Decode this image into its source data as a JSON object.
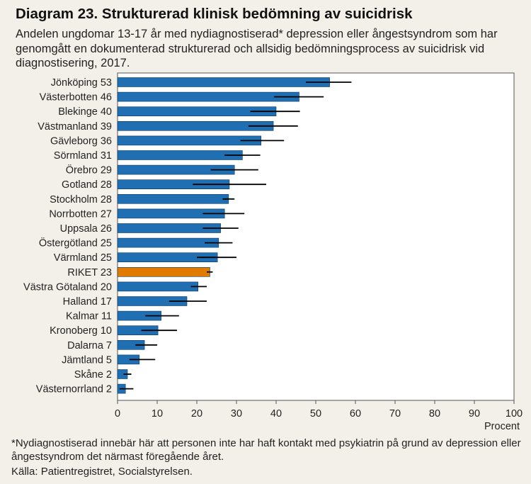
{
  "title": "Diagram 23. Strukturerad klinisk bedömning av suicidrisk",
  "subtitle": "Andelen ungdomar 13-17 år med nydiagnostiserad* depression eller ångestsyndrom som har genomgått  en dokumenterad strukturerad och allsidig bedömningsprocess av suicidrisk vid diagnostisering, 2017.",
  "footnote": "*Nydiagnostiserad innebär här att personen inte har haft kontakt med psykiatrin på grund av depression eller ångestsyndrom det närmast föregående året.",
  "source": "Källa: Patientregistret, Socialstyrelsen.",
  "colors": {
    "bar": "#1f6fb2",
    "highlight": "#e07b00",
    "errorbar": "#000000",
    "background": "#f2f0e8",
    "plot_bg": "#ffffff"
  },
  "chart_data": {
    "type": "bar",
    "orientation": "horizontal",
    "title": "Strukturerad klinisk bedömning av suicidrisk",
    "xlabel": "Procent",
    "ylabel": "",
    "xlim": [
      0,
      100
    ],
    "xticks": [
      0,
      10,
      20,
      30,
      40,
      50,
      60,
      70,
      80,
      90,
      100
    ],
    "grid": false,
    "highlight_category": "RIKET",
    "categories": [
      {
        "label": "Jönköping 53",
        "name": "Jönköping",
        "value": 53.5,
        "ci": [
          47.5,
          59.0
        ]
      },
      {
        "label": "Västerbotten 46",
        "name": "Västerbotten",
        "value": 45.8,
        "ci": [
          39.5,
          52.0
        ]
      },
      {
        "label": "Blekinge 40",
        "name": "Blekinge",
        "value": 40.0,
        "ci": [
          33.5,
          46.0
        ]
      },
      {
        "label": "Västmanland 39",
        "name": "Västmanland",
        "value": 39.3,
        "ci": [
          33.0,
          45.5
        ]
      },
      {
        "label": "Gävleborg 36",
        "name": "Gävleborg",
        "value": 36.2,
        "ci": [
          31.0,
          42.0
        ]
      },
      {
        "label": "Sörmland 31",
        "name": "Sörmland",
        "value": 31.5,
        "ci": [
          27.0,
          36.0
        ]
      },
      {
        "label": "Örebro 29",
        "name": "Örebro",
        "value": 29.5,
        "ci": [
          23.5,
          35.5
        ]
      },
      {
        "label": "Gotland 28",
        "name": "Gotland",
        "value": 28.2,
        "ci": [
          19.0,
          37.5
        ]
      },
      {
        "label": "Stockholm 28",
        "name": "Stockholm",
        "value": 28.0,
        "ci": [
          26.5,
          29.5
        ]
      },
      {
        "label": "Norrbotten 27",
        "name": "Norrbotten",
        "value": 27.0,
        "ci": [
          21.5,
          32.0
        ]
      },
      {
        "label": "Uppsala 26",
        "name": "Uppsala",
        "value": 26.0,
        "ci": [
          21.5,
          30.5
        ]
      },
      {
        "label": "Östergötland 25",
        "name": "Östergötland",
        "value": 25.5,
        "ci": [
          22.0,
          29.0
        ]
      },
      {
        "label": "Värmland 25",
        "name": "Värmland",
        "value": 25.2,
        "ci": [
          20.0,
          30.0
        ]
      },
      {
        "label": "RIKET 23",
        "name": "RIKET",
        "value": 23.3,
        "ci": [
          22.5,
          24.0
        ]
      },
      {
        "label": "Västra Götaland 20",
        "name": "Västra Götaland",
        "value": 20.3,
        "ci": [
          18.5,
          22.5
        ]
      },
      {
        "label": "Halland 17",
        "name": "Halland",
        "value": 17.5,
        "ci": [
          13.0,
          22.5
        ]
      },
      {
        "label": "Kalmar 11",
        "name": "Kalmar",
        "value": 11.0,
        "ci": [
          7.0,
          15.5
        ]
      },
      {
        "label": "Kronoberg 10",
        "name": "Kronoberg",
        "value": 10.2,
        "ci": [
          6.0,
          15.0
        ]
      },
      {
        "label": "Dalarna 7",
        "name": "Dalarna",
        "value": 6.8,
        "ci": [
          4.5,
          10.0
        ]
      },
      {
        "label": "Jämtland 5",
        "name": "Jämtland",
        "value": 5.5,
        "ci": [
          3.0,
          9.5
        ]
      },
      {
        "label": "Skåne 2",
        "name": "Skåne",
        "value": 2.5,
        "ci": [
          1.5,
          3.5
        ]
      },
      {
        "label": "Västernorrland 2",
        "name": "Västernorrland",
        "value": 2.0,
        "ci": [
          0.5,
          4.0
        ]
      }
    ]
  }
}
